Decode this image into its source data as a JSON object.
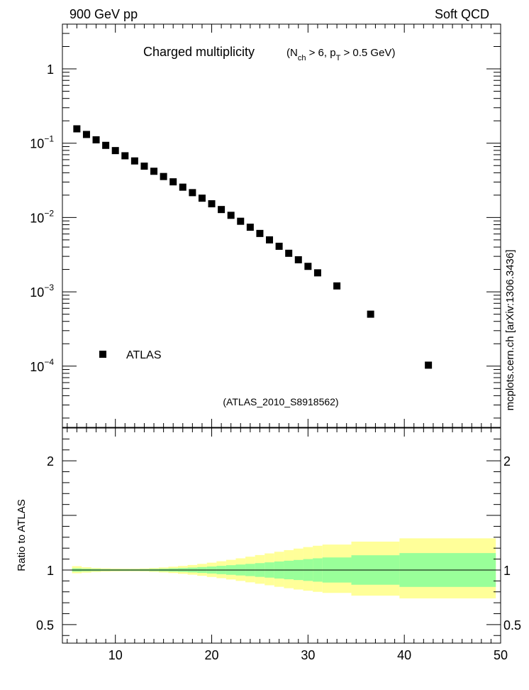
{
  "header": {
    "left": "900 GeV pp",
    "right": "Soft QCD"
  },
  "watermark": "mcplots.cern.ch [arXiv:1306.3436]",
  "colors": {
    "band_outer": "#ffff99",
    "band_inner": "#99ff99",
    "marker": "#000000",
    "reference_tag": "#888888"
  },
  "chart_data": [
    {
      "type": "scatter",
      "title": "Charged multiplicity",
      "subtitle": {
        "main": "(N",
        "sub1": "ch",
        "mid": " > 6, p",
        "sub2": "T",
        "tail": " > 0.5 GeV)"
      },
      "reference_tag": "(ATLAS_2010_S8918562)",
      "log_y": true,
      "xlim": [
        4.5,
        50
      ],
      "ylim": [
        1.5e-05,
        4
      ],
      "y_ticks": [
        {
          "v": 1,
          "b": "1",
          "e": ""
        },
        {
          "v": 0.1,
          "b": "10",
          "e": "−1"
        },
        {
          "v": 0.01,
          "b": "10",
          "e": "−2"
        },
        {
          "v": 0.001,
          "b": "10",
          "e": "−3"
        },
        {
          "v": 0.0001,
          "b": "10",
          "e": "−4"
        }
      ],
      "legend": {
        "label": "ATLAS",
        "position": "bottom-left"
      },
      "series": [
        {
          "name": "ATLAS",
          "x": [
            6,
            7,
            8,
            9,
            10,
            11,
            12,
            13,
            14,
            15,
            16,
            17,
            18,
            19,
            20,
            21,
            22,
            23,
            24,
            25,
            26,
            27,
            28,
            29,
            30,
            31,
            33,
            36.5,
            42.5
          ],
          "y": [
            0.156,
            0.131,
            0.111,
            0.0935,
            0.0795,
            0.0677,
            0.0577,
            0.0491,
            0.0419,
            0.0356,
            0.0302,
            0.0256,
            0.0216,
            0.0182,
            0.0153,
            0.0128,
            0.0107,
            0.0089,
            0.0074,
            0.0061,
            0.005,
            0.0041,
            0.0033,
            0.0027,
            0.0022,
            0.0018,
            0.0012,
            0.0005,
            0.000103
          ]
        }
      ]
    },
    {
      "type": "area",
      "ylabel": "Ratio to ATLAS",
      "xlim": [
        4.5,
        50
      ],
      "ylim": [
        0.33,
        2.3
      ],
      "x_tick_labels": [
        10,
        20,
        30,
        40,
        50
      ],
      "y_tick_labels": [
        {
          "v": 2,
          "t": "2"
        },
        {
          "v": 1,
          "t": "1"
        },
        {
          "v": 0.5,
          "t": "0.5"
        }
      ],
      "reference_line": 1,
      "bins": [
        {
          "lo": 5.5,
          "hi": 6.5,
          "inner": [
            0.985,
            1.015
          ],
          "outer": [
            0.97,
            1.035
          ]
        },
        {
          "lo": 6.5,
          "hi": 7.5,
          "inner": [
            0.988,
            1.012
          ],
          "outer": [
            0.976,
            1.025
          ]
        },
        {
          "lo": 7.5,
          "hi": 8.5,
          "inner": [
            0.99,
            1.01
          ],
          "outer": [
            0.982,
            1.018
          ]
        },
        {
          "lo": 8.5,
          "hi": 9.5,
          "inner": [
            0.992,
            1.008
          ],
          "outer": [
            0.985,
            1.015
          ]
        },
        {
          "lo": 9.5,
          "hi": 10.5,
          "inner": [
            0.993,
            1.007
          ],
          "outer": [
            0.987,
            1.013
          ]
        },
        {
          "lo": 10.5,
          "hi": 11.5,
          "inner": [
            0.993,
            1.007
          ],
          "outer": [
            0.988,
            1.012
          ]
        },
        {
          "lo": 11.5,
          "hi": 12.5,
          "inner": [
            0.993,
            1.007
          ],
          "outer": [
            0.988,
            1.012
          ]
        },
        {
          "lo": 12.5,
          "hi": 13.5,
          "inner": [
            0.992,
            1.008
          ],
          "outer": [
            0.987,
            1.014
          ]
        },
        {
          "lo": 13.5,
          "hi": 14.5,
          "inner": [
            0.99,
            1.01
          ],
          "outer": [
            0.983,
            1.018
          ]
        },
        {
          "lo": 14.5,
          "hi": 15.5,
          "inner": [
            0.988,
            1.012
          ],
          "outer": [
            0.978,
            1.023
          ]
        },
        {
          "lo": 15.5,
          "hi": 16.5,
          "inner": [
            0.985,
            1.015
          ],
          "outer": [
            0.972,
            1.03
          ]
        },
        {
          "lo": 16.5,
          "hi": 17.5,
          "inner": [
            0.982,
            1.018
          ],
          "outer": [
            0.965,
            1.037
          ]
        },
        {
          "lo": 17.5,
          "hi": 18.5,
          "inner": [
            0.978,
            1.022
          ],
          "outer": [
            0.957,
            1.046
          ]
        },
        {
          "lo": 18.5,
          "hi": 19.5,
          "inner": [
            0.973,
            1.027
          ],
          "outer": [
            0.947,
            1.056
          ]
        },
        {
          "lo": 19.5,
          "hi": 20.5,
          "inner": [
            0.968,
            1.032
          ],
          "outer": [
            0.936,
            1.067
          ]
        },
        {
          "lo": 20.5,
          "hi": 21.5,
          "inner": [
            0.962,
            1.038
          ],
          "outer": [
            0.925,
            1.08
          ]
        },
        {
          "lo": 21.5,
          "hi": 22.5,
          "inner": [
            0.956,
            1.044
          ],
          "outer": [
            0.913,
            1.093
          ]
        },
        {
          "lo": 22.5,
          "hi": 23.5,
          "inner": [
            0.95,
            1.05
          ],
          "outer": [
            0.9,
            1.107
          ]
        },
        {
          "lo": 23.5,
          "hi": 24.5,
          "inner": [
            0.944,
            1.056
          ],
          "outer": [
            0.887,
            1.122
          ]
        },
        {
          "lo": 24.5,
          "hi": 25.5,
          "inner": [
            0.937,
            1.063
          ],
          "outer": [
            0.874,
            1.137
          ]
        },
        {
          "lo": 25.5,
          "hi": 26.5,
          "inner": [
            0.93,
            1.07
          ],
          "outer": [
            0.86,
            1.152
          ]
        },
        {
          "lo": 26.5,
          "hi": 27.5,
          "inner": [
            0.922,
            1.078
          ],
          "outer": [
            0.846,
            1.167
          ]
        },
        {
          "lo": 27.5,
          "hi": 28.5,
          "inner": [
            0.915,
            1.085
          ],
          "outer": [
            0.833,
            1.182
          ]
        },
        {
          "lo": 28.5,
          "hi": 29.5,
          "inner": [
            0.908,
            1.092
          ],
          "outer": [
            0.821,
            1.196
          ]
        },
        {
          "lo": 29.5,
          "hi": 30.5,
          "inner": [
            0.9,
            1.1
          ],
          "outer": [
            0.81,
            1.21
          ]
        },
        {
          "lo": 30.5,
          "hi": 31.5,
          "inner": [
            0.893,
            1.107
          ],
          "outer": [
            0.8,
            1.222
          ]
        },
        {
          "lo": 31.5,
          "hi": 34.5,
          "inner": [
            0.885,
            1.115
          ],
          "outer": [
            0.79,
            1.233
          ]
        },
        {
          "lo": 34.5,
          "hi": 39.5,
          "inner": [
            0.865,
            1.135
          ],
          "outer": [
            0.765,
            1.26
          ]
        },
        {
          "lo": 39.5,
          "hi": 49.5,
          "inner": [
            0.845,
            1.155
          ],
          "outer": [
            0.74,
            1.29
          ]
        }
      ]
    }
  ]
}
